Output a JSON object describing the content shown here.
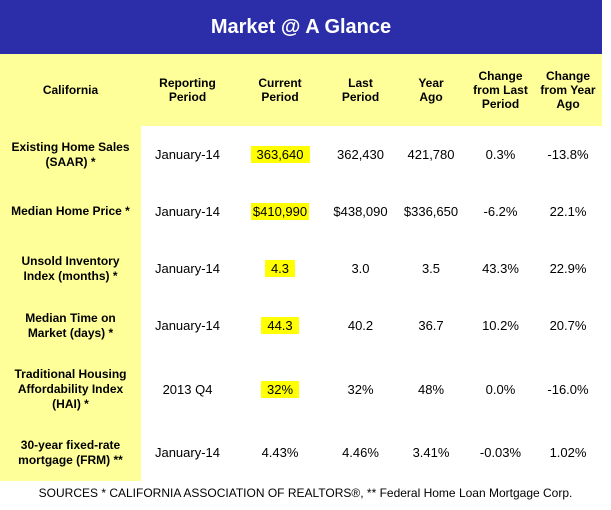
{
  "title": "Market @ A Glance",
  "headers": [
    "California",
    "Reporting Period",
    "Current Period",
    "Last Period",
    "Year Ago",
    "Change from Last Period",
    "Change from Year Ago"
  ],
  "rows": [
    {
      "label": "Existing Home Sales (SAAR) *",
      "period": "January-14",
      "current": "363,640",
      "last": "362,430",
      "year_ago": "421,780",
      "chg_last": "0.3%",
      "chg_year": "-13.8%"
    },
    {
      "label": "Median Home Price *",
      "period": "January-14",
      "current": "$410,990",
      "last": "$438,090",
      "year_ago": "$336,650",
      "chg_last": "-6.2%",
      "chg_year": "22.1%"
    },
    {
      "label": "Unsold Inventory Index (months) *",
      "period": "January-14",
      "current": "4.3",
      "last": "3.0",
      "year_ago": "3.5",
      "chg_last": "43.3%",
      "chg_year": "22.9%"
    },
    {
      "label": "Median Time on Market (days) *",
      "period": "January-14",
      "current": "44.3",
      "last": "40.2",
      "year_ago": "36.7",
      "chg_last": "10.2%",
      "chg_year": "20.7%"
    },
    {
      "label": "Traditional Housing Affordability Index (HAI) *",
      "period": "2013 Q4",
      "current": "32%",
      "last": "32%",
      "year_ago": "48%",
      "chg_last": "0.0%",
      "chg_year": "-16.0%"
    },
    {
      "label": "30-year fixed-rate mortgage (FRM) **",
      "period": "January-14",
      "current": "4.43%",
      "last": "4.46%",
      "year_ago": "3.41%",
      "chg_last": "-0.03%",
      "chg_year": "1.02%"
    }
  ],
  "sources": "SOURCES * CALIFORNIA ASSOCIATION OF REALTORS®, ** Federal Home Loan Mortgage Corp.",
  "colors": {
    "title_bg": "#2b2ea8",
    "header_bg": "#ffff99",
    "highlight": "#ffff00"
  }
}
